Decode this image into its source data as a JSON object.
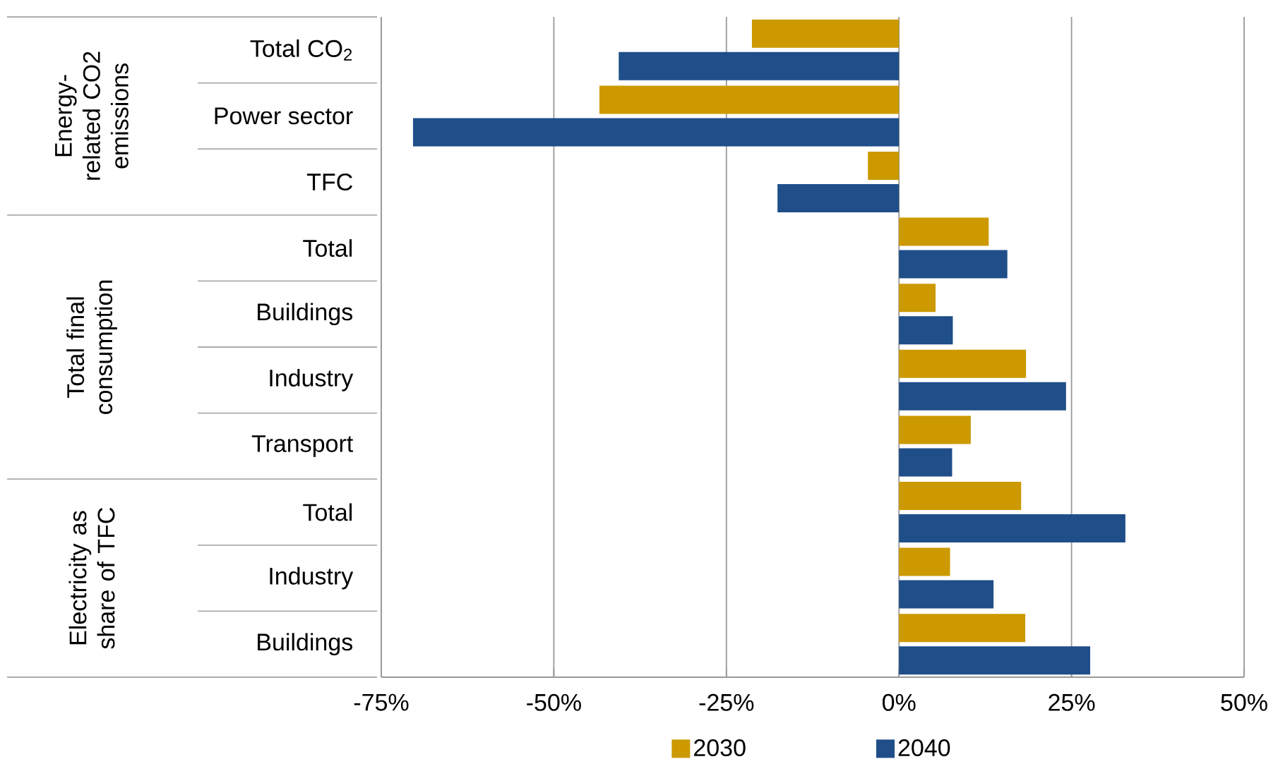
{
  "chart_data": {
    "type": "bar",
    "orientation": "horizontal",
    "categories": [
      "Total CO$_{2}$",
      "Power sector",
      "TFC",
      "Total",
      "Buildings",
      "Industry",
      "Transport",
      "Total",
      "Industry",
      "Buildings"
    ],
    "series": [
      {
        "name": "2030",
        "color": "#cc9900",
        "values": [
          -21.3,
          -43.4,
          -4.5,
          13.0,
          5.3,
          18.4,
          10.4,
          17.7,
          7.4,
          18.3
        ]
      },
      {
        "name": "2040",
        "color": "#1f4e89",
        "values": [
          -40.6,
          -70.4,
          -17.6,
          15.7,
          7.8,
          24.2,
          7.7,
          32.8,
          13.7,
          27.7
        ]
      }
    ],
    "xlim": [
      -75,
      50
    ],
    "xticks": [
      {
        "value": -75,
        "label": "-75%"
      },
      {
        "value": -50,
        "label": "-50%"
      },
      {
        "value": -25,
        "label": "-25%"
      },
      {
        "value": 0,
        "label": "0%"
      },
      {
        "value": 25,
        "label": "25%"
      },
      {
        "value": 50,
        "label": "50%"
      }
    ],
    "annotations": [
      "Energy-related CO2 emissions",
      "Total final consumption",
      "Electricity as share of TFC"
    ],
    "grid": "x",
    "legend": "bottom"
  }
}
